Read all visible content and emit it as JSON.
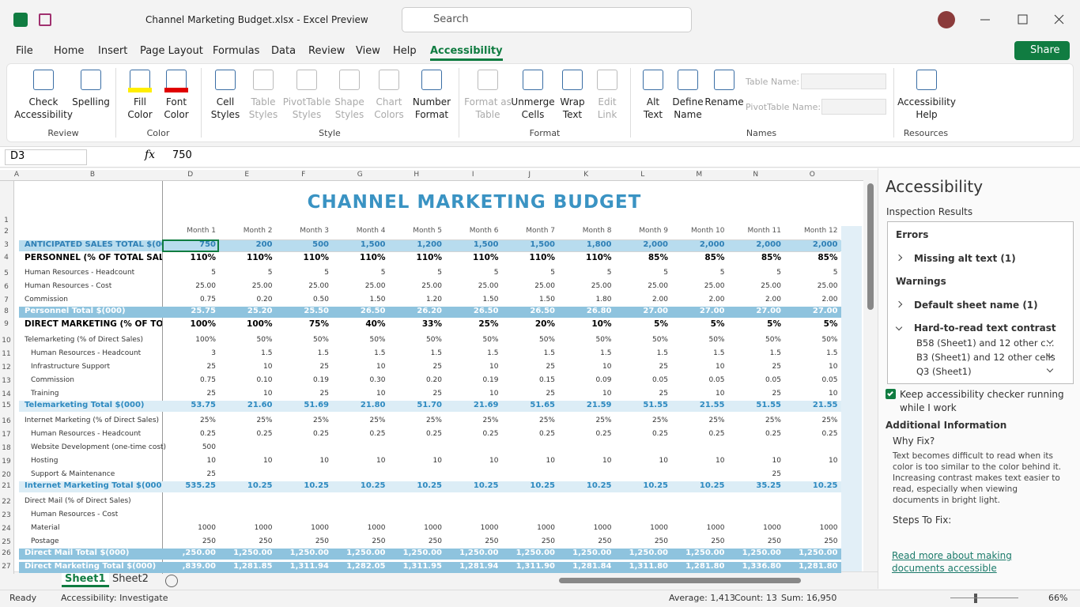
{
  "title_bar": {
    "title": "Channel Marketing Budget.xlsx  -  Excel Preview",
    "search": "Search"
  },
  "ribbon": {
    "tabs": [
      "File",
      "Home",
      "Insert",
      "Page Layout",
      "Formulas",
      "Data",
      "Review",
      "View",
      "Help",
      "Accessibility"
    ],
    "active_tab": 9,
    "share": "Share",
    "groups": [
      {
        "label": "Review",
        "buttons": [
          {
            "lines": [
              "Check",
              "Accessibility"
            ]
          },
          {
            "lines": [
              "Spelling"
            ]
          }
        ]
      },
      {
        "label": "Color",
        "buttons": [
          {
            "lines": [
              "Fill",
              "Color"
            ]
          },
          {
            "lines": [
              "Font",
              "Color"
            ]
          }
        ]
      },
      {
        "label": "Style",
        "buttons": [
          {
            "lines": [
              "Cell",
              "Styles"
            ]
          },
          {
            "lines": [
              "Table",
              "Styles"
            ],
            "enabled": false
          },
          {
            "lines": [
              "PivotTable",
              "Styles"
            ],
            "enabled": false
          },
          {
            "lines": [
              "Shape",
              "Styles"
            ],
            "enabled": false
          },
          {
            "lines": [
              "Chart",
              "Colors"
            ],
            "enabled": false
          },
          {
            "lines": [
              "Number",
              "Format"
            ]
          }
        ]
      },
      {
        "label": "Format",
        "buttons": [
          {
            "lines": [
              "Format as",
              "Table"
            ],
            "enabled": false
          },
          {
            "lines": [
              "Unmerge",
              "Cells"
            ]
          },
          {
            "lines": [
              "Wrap",
              "Text"
            ]
          },
          {
            "lines": [
              "Edit",
              "Link"
            ],
            "enabled": false
          }
        ]
      },
      {
        "label": "Names",
        "buttons": [
          {
            "lines": [
              "Alt",
              "Text"
            ]
          },
          {
            "lines": [
              "Define",
              "Name"
            ]
          },
          {
            "lines": [
              "Rename"
            ]
          }
        ],
        "fields": [
          "Table Name:",
          "PivotTable Name:"
        ]
      },
      {
        "label": "Resources",
        "buttons": [
          {
            "lines": [
              "Accessibility",
              "Help"
            ]
          }
        ]
      }
    ]
  },
  "formula_bar": {
    "name_box": "D3",
    "fx": "fx",
    "content": "750"
  },
  "sheet": {
    "columns": [
      "A",
      "B",
      "D",
      "E",
      "F",
      "G",
      "H",
      "I",
      "J",
      "K",
      "L",
      "M",
      "N",
      "O"
    ],
    "title_row": {
      "n": 1,
      "title": "CHANNEL MARKETING BUDGET"
    },
    "rows": [
      {
        "n": 2,
        "cells": [
          "Month 1",
          "Month 2",
          "Month 3",
          "Month 4",
          "Month 5",
          "Month 6",
          "Month 7",
          "Month 8",
          "Month 9",
          "Month 10",
          "Month 11",
          "Month 12"
        ]
      },
      {
        "n": 3,
        "label": "ANTICIPATED SALES TOTAL $(00",
        "cells": [
          "750",
          "200",
          "500",
          "1,500",
          "1,200",
          "1,500",
          "1,500",
          "1,800",
          "2,000",
          "2,000",
          "2,000",
          "2,000"
        ]
      },
      {
        "n": 4,
        "label": "PERSONNEL (% OF TOTAL SALES",
        "cells": [
          "110%",
          "110%",
          "110%",
          "110%",
          "110%",
          "110%",
          "110%",
          "110%",
          "85%",
          "85%",
          "85%",
          "85%"
        ]
      },
      {
        "n": 5,
        "label": "Human Resources - Headcount",
        "cells": [
          "5",
          "5",
          "5",
          "5",
          "5",
          "5",
          "5",
          "5",
          "5",
          "5",
          "5",
          "5"
        ]
      },
      {
        "n": 6,
        "label": "Human Resources - Cost",
        "cells": [
          "25.00",
          "25.00",
          "25.00",
          "25.00",
          "25.00",
          "25.00",
          "25.00",
          "25.00",
          "25.00",
          "25.00",
          "25.00",
          "25.00"
        ]
      },
      {
        "n": 7,
        "label": "Commission",
        "cells": [
          "0.75",
          "0.20",
          "0.50",
          "1.50",
          "1.20",
          "1.50",
          "1.50",
          "1.80",
          "2.00",
          "2.00",
          "2.00",
          "2.00"
        ]
      },
      {
        "n": 8,
        "label": "Personnel Total $(000)",
        "cells": [
          "25.75",
          "25.20",
          "25.50",
          "26.50",
          "26.20",
          "26.50",
          "26.50",
          "26.80",
          "27.00",
          "27.00",
          "27.00",
          "27.00"
        ]
      },
      {
        "n": 9,
        "label": "DIRECT MARKETING (% OF TOTA",
        "cells": [
          "100%",
          "100%",
          "75%",
          "40%",
          "33%",
          "25%",
          "20%",
          "10%",
          "5%",
          "5%",
          "5%",
          "5%"
        ]
      },
      {
        "n": 10,
        "label": "Telemarketing (% of Direct Sales)",
        "cells": [
          "100%",
          "50%",
          "50%",
          "50%",
          "50%",
          "50%",
          "50%",
          "50%",
          "50%",
          "50%",
          "50%",
          "50%"
        ]
      },
      {
        "n": 11,
        "label": "Human Resources - Headcount",
        "cells": [
          "3",
          "1.5",
          "1.5",
          "1.5",
          "1.5",
          "1.5",
          "1.5",
          "1.5",
          "1.5",
          "1.5",
          "1.5",
          "1.5"
        ]
      },
      {
        "n": 12,
        "label": "Infrastructure Support",
        "cells": [
          "25",
          "10",
          "25",
          "10",
          "25",
          "10",
          "25",
          "10",
          "25",
          "10",
          "25",
          "10"
        ]
      },
      {
        "n": 13,
        "label": "Commission",
        "cells": [
          "0.75",
          "0.10",
          "0.19",
          "0.30",
          "0.20",
          "0.19",
          "0.15",
          "0.09",
          "0.05",
          "0.05",
          "0.05",
          "0.05"
        ]
      },
      {
        "n": 14,
        "label": "Training",
        "cells": [
          "25",
          "10",
          "25",
          "10",
          "25",
          "10",
          "25",
          "10",
          "25",
          "10",
          "25",
          "10"
        ]
      },
      {
        "n": 15,
        "label": "Telemarketing Total $(000)",
        "cells": [
          "53.75",
          "21.60",
          "51.69",
          "21.80",
          "51.70",
          "21.69",
          "51.65",
          "21.59",
          "51.55",
          "21.55",
          "51.55",
          "21.55"
        ]
      },
      {
        "n": 16,
        "label": "Internet Marketing (% of Direct Sales)",
        "cells": [
          "25%",
          "25%",
          "25%",
          "25%",
          "25%",
          "25%",
          "25%",
          "25%",
          "25%",
          "25%",
          "25%",
          "25%"
        ]
      },
      {
        "n": 17,
        "label": "Human Resources - Headcount",
        "cells": [
          "0.25",
          "0.25",
          "0.25",
          "0.25",
          "0.25",
          "0.25",
          "0.25",
          "0.25",
          "0.25",
          "0.25",
          "0.25",
          "0.25"
        ]
      },
      {
        "n": 18,
        "label": "Website Development (one-time cost)",
        "cells": [
          "500",
          null,
          null,
          null,
          null,
          null,
          null,
          null,
          null,
          null,
          null,
          null
        ]
      },
      {
        "n": 19,
        "label": "Hosting",
        "cells": [
          "10",
          "10",
          "10",
          "10",
          "10",
          "10",
          "10",
          "10",
          "10",
          "10",
          "10",
          "10"
        ]
      },
      {
        "n": 20,
        "label": "Support & Maintenance",
        "cells": [
          "25",
          null,
          null,
          null,
          null,
          null,
          null,
          null,
          null,
          null,
          "25",
          null
        ]
      },
      {
        "n": 21,
        "label": "Internet Marketing Total $(000)",
        "cells": [
          "535.25",
          "10.25",
          "10.25",
          "10.25",
          "10.25",
          "10.25",
          "10.25",
          "10.25",
          "10.25",
          "10.25",
          "35.25",
          "10.25"
        ]
      },
      {
        "n": 22,
        "label": "Direct Mail (% of Direct Sales)",
        "cells": [
          null,
          null,
          null,
          null,
          null,
          null,
          null,
          null,
          null,
          null,
          null,
          null
        ]
      },
      {
        "n": 23,
        "label": "Human Resources - Cost",
        "cells": [
          null,
          null,
          null,
          null,
          null,
          null,
          null,
          null,
          null,
          null,
          null,
          null
        ]
      },
      {
        "n": 24,
        "label": "Material",
        "cells": [
          "1000",
          "1000",
          "1000",
          "1000",
          "1000",
          "1000",
          "1000",
          "1000",
          "1000",
          "1000",
          "1000",
          "1000"
        ]
      },
      {
        "n": 25,
        "label": "Postage",
        "cells": [
          "250",
          "250",
          "250",
          "250",
          "250",
          "250",
          "250",
          "250",
          "250",
          "250",
          "250",
          "250"
        ]
      },
      {
        "n": 26,
        "label": "Direct Mail Total $(000)",
        "cells": [
          ",250.00",
          "1,250.00",
          "1,250.00",
          "1,250.00",
          "1,250.00",
          "1,250.00",
          "1,250.00",
          "1,250.00",
          "1,250.00",
          "1,250.00",
          "1,250.00",
          "1,250.00"
        ]
      },
      {
        "n": 27,
        "label": "Direct Marketing Total $(000)",
        "cells": [
          ",839.00",
          "1,281.85",
          "1,311.94",
          "1,282.05",
          "1,311.95",
          "1,281.94",
          "1,311.90",
          "1,281.84",
          "1,311.80",
          "1,281.80",
          "1,336.80",
          "1,281.80"
        ]
      }
    ],
    "tabs": [
      "Sheet1",
      "Sheet2"
    ],
    "active_tab": 0
  },
  "panel": {
    "title": "Accessibility",
    "subtitle": "Inspection Results",
    "sections": [
      {
        "heading": "Errors",
        "items": [
          {
            "label": "Missing alt text (1)"
          }
        ]
      },
      {
        "heading": "Warnings",
        "items": [
          {
            "label": "Default sheet name (1)"
          },
          {
            "label": "Hard-to-read text contrast",
            "children": [
              "B58 (Sheet1) and 12 other c...",
              "B3 (Sheet1) and 12 other cells",
              "Q3 (Sheet1)"
            ]
          }
        ]
      }
    ],
    "keep_running": "Keep accessibility checker running while I work",
    "checked": true,
    "additional": "Additional Information",
    "why_fix": "Why Fix?",
    "why_text": "Text becomes difficult to read when its color is too similar to the color behind it. Increasing contrast makes text easier to read, especially when viewing documents in bright light.",
    "steps": "Steps To Fix:",
    "link": "Read more about making documents accessible"
  },
  "status_bar": {
    "mode": "Ready",
    "accessibility": "Accessibility: Investigate",
    "average": "Average: 1,413",
    "count": "Count: 13",
    "sum": "Sum: 16,950",
    "zoom": "66%"
  }
}
